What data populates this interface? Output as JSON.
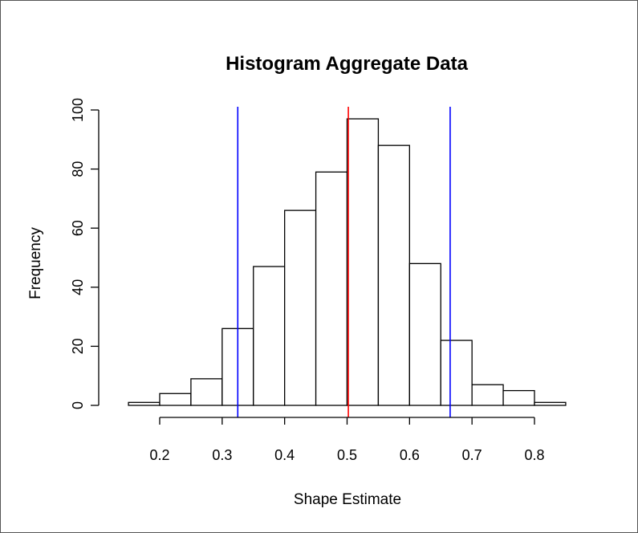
{
  "chart_data": {
    "type": "bar",
    "title": "Histogram Aggregate Data",
    "xlabel": "Shape Estimate",
    "ylabel": "Frequency",
    "bin_edges": [
      0.15,
      0.2,
      0.25,
      0.3,
      0.35,
      0.4,
      0.45,
      0.5,
      0.55,
      0.6,
      0.65,
      0.7,
      0.75,
      0.8,
      0.85
    ],
    "values": [
      1,
      4,
      9,
      26,
      47,
      66,
      79,
      97,
      88,
      48,
      22,
      7,
      5,
      1
    ],
    "xlim": [
      0.15,
      0.85
    ],
    "ylim": [
      0,
      100
    ],
    "x_ticks": [
      0.2,
      0.3,
      0.4,
      0.5,
      0.6,
      0.7,
      0.8
    ],
    "x_tick_labels": [
      "0.2",
      "0.3",
      "0.4",
      "0.5",
      "0.6",
      "0.7",
      "0.8"
    ],
    "y_ticks": [
      0,
      20,
      40,
      60,
      80,
      100
    ],
    "y_tick_labels": [
      "0",
      "20",
      "40",
      "60",
      "80",
      "100"
    ],
    "reference_lines": [
      {
        "x": 0.325,
        "color": "#0000ff"
      },
      {
        "x": 0.502,
        "color": "#ff0000"
      },
      {
        "x": 0.665,
        "color": "#0000ff"
      }
    ],
    "bar_fill": "#ffffff",
    "bar_stroke": "#000000",
    "grid": false,
    "legend": "none"
  }
}
